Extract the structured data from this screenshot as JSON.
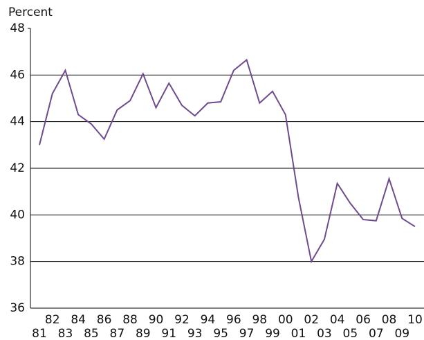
{
  "chart_data": {
    "type": "line",
    "y_label": "Percent",
    "categories": [
      "81",
      "82",
      "83",
      "84",
      "85",
      "86",
      "87",
      "88",
      "89",
      "90",
      "91",
      "92",
      "93",
      "94",
      "95",
      "96",
      "97",
      "98",
      "99",
      "00",
      "01",
      "02",
      "03",
      "04",
      "05",
      "06",
      "07",
      "08",
      "09",
      "10"
    ],
    "values": [
      43.0,
      45.2,
      46.2,
      44.3,
      43.9,
      43.25,
      44.5,
      44.9,
      46.05,
      44.6,
      45.65,
      44.7,
      44.25,
      44.8,
      44.85,
      46.2,
      46.65,
      44.8,
      45.3,
      44.3,
      40.75,
      38.0,
      38.95,
      41.35,
      40.5,
      39.8,
      39.75,
      41.55,
      39.85,
      39.5
    ],
    "color": "#6e4a8e",
    "ylim": [
      36,
      48
    ],
    "yticks": [
      36,
      38,
      40,
      42,
      44,
      46,
      48
    ],
    "grid": true
  }
}
